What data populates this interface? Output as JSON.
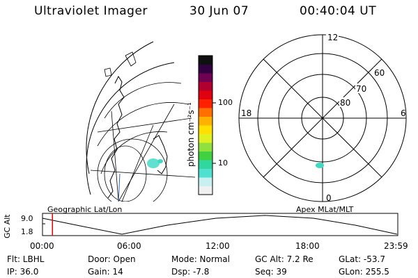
{
  "header": {
    "instrument": "Ultraviolet Imager",
    "date": "30 Jun 07",
    "time": "00:40:04 UT"
  },
  "colorbar": {
    "unit_label": "photon cm⁻²s⁻¹",
    "ticks": [
      "100",
      "10"
    ],
    "colors": [
      "#f0f0f0",
      "#c8f0f0",
      "#50e0d0",
      "#30d8a0",
      "#40d040",
      "#90e040",
      "#e0f020",
      "#ffe000",
      "#ffb000",
      "#ff7000",
      "#ff2000",
      "#e00010",
      "#b00030",
      "#700050",
      "#300040",
      "#101010"
    ]
  },
  "polar_plot": {
    "mlt_labels": [
      "12",
      "18",
      "6",
      "0"
    ],
    "lat_labels": [
      "60",
      "70",
      "80"
    ]
  },
  "timeline": {
    "ylabel": "GC Alt",
    "yticks": [
      "9.0",
      "1.8"
    ],
    "left_title": "Geographic Lat/Lon",
    "right_title": "Apex MLat/MLT",
    "xticks": [
      "00:00",
      "06:00",
      "12:00",
      "18:00",
      "23:59"
    ],
    "current_time_fraction": 0.028
  },
  "info": {
    "flt": "Flt: LBHL",
    "ip": "IP: 36.0",
    "door": "Door: Open",
    "gain": "Gain: 14",
    "mode": "Mode: Normal",
    "dsp": "Dsp:    -7.8",
    "gcalt": "GC Alt: 7.2 Re",
    "seq": "Seq: 39",
    "glat": "GLat: -53.7",
    "glon": "GLon: 255.5"
  }
}
